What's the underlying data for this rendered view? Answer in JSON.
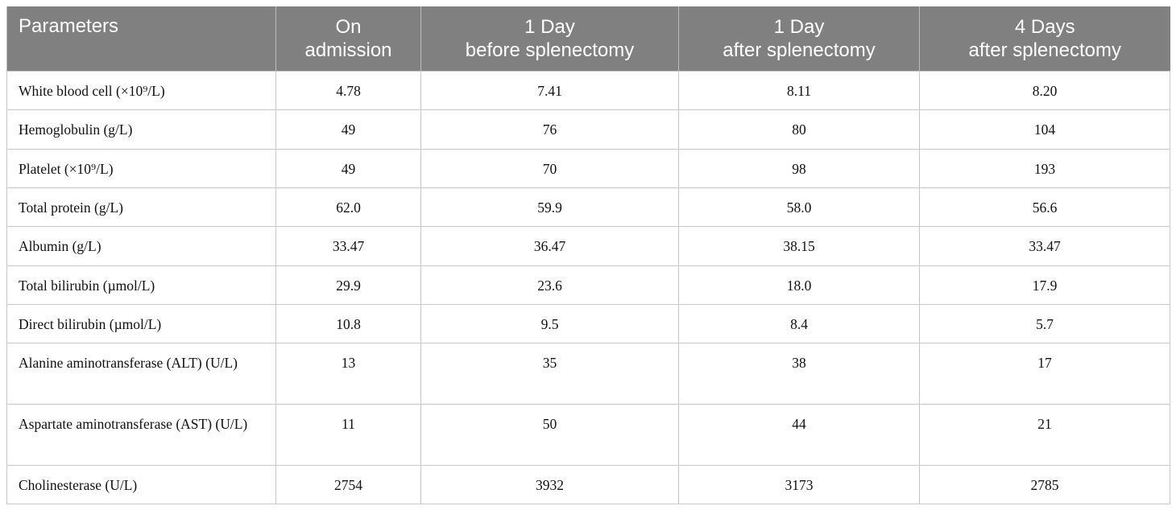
{
  "table": {
    "header": [
      [
        "Parameters"
      ],
      [
        "On",
        "admission"
      ],
      [
        "1 Day",
        "before splenectomy"
      ],
      [
        "1 Day",
        "after splenectomy"
      ],
      [
        "4 Days",
        "after splenectomy"
      ]
    ],
    "rows": [
      [
        "White blood cell (×10⁹/L)",
        "4.78",
        "7.41",
        "8.11",
        "8.20"
      ],
      [
        "Hemoglobulin (g/L)",
        "49",
        "76",
        "80",
        "104"
      ],
      [
        "Platelet (×10⁹/L)",
        "49",
        "70",
        "98",
        "193"
      ],
      [
        "Total protein (g/L)",
        "62.0",
        "59.9",
        "58.0",
        "56.6"
      ],
      [
        "Albumin (g/L)",
        "33.47",
        "36.47",
        "38.15",
        "33.47"
      ],
      [
        "Total bilirubin (µmol/L)",
        "29.9",
        "23.6",
        "18.0",
        "17.9"
      ],
      [
        "Direct bilirubin (µmol/L)",
        "10.8",
        "9.5",
        "8.4",
        "5.7"
      ],
      [
        "Alanine aminotransferase (ALT) (U/L)",
        "13",
        "35",
        "38",
        "17"
      ],
      [
        "Aspartate aminotransferase (AST) (U/L)",
        "11",
        "50",
        "44",
        "21"
      ],
      [
        "Cholinesterase (U/L)",
        "2754",
        "3932",
        "3173",
        "2785"
      ]
    ]
  }
}
